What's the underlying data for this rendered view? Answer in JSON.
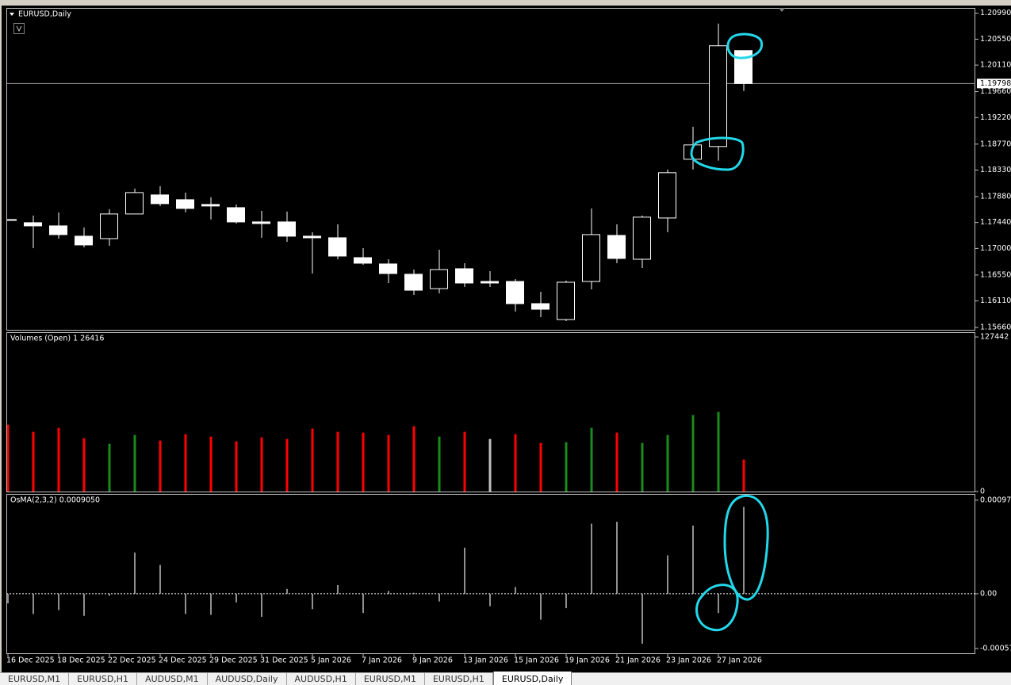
{
  "chart_data": [
    {
      "type": "candlestick",
      "title": "EURUSD,Daily",
      "categories": [
        "16 Dec 2025",
        null,
        "18 Dec 2025",
        null,
        "22 Dec 2025",
        null,
        "24 Dec 2025",
        null,
        "29 Dec 2025",
        null,
        "31 Dec 2025",
        null,
        "5 Jan 2026",
        null,
        "7 Jan 2026",
        null,
        "9 Jan 2026",
        null,
        "13 Jan 2026",
        null,
        "15 Jan 2026",
        null,
        "19 Jan 2026",
        null,
        "21 Jan 2026",
        null,
        "23 Jan 2026",
        null,
        "27 Jan 2026",
        null
      ],
      "open": [
        1.1749,
        1.17437,
        1.17383,
        1.17208,
        1.17167,
        1.17585,
        1.17908,
        1.17827,
        1.17746,
        1.17692,
        1.1745,
        1.1745,
        1.17208,
        1.17181,
        1.16844,
        1.16737,
        1.16562,
        1.16319,
        1.16656,
        1.1644,
        1.1644,
        1.16064,
        1.15794,
        1.1644,
        1.17221,
        1.16817,
        1.17517,
        1.18513,
        1.18729,
        1.20357
      ],
      "high": [
        1.1749,
        1.17558,
        1.17612,
        1.17356,
        1.17666,
        1.18015,
        1.18056,
        1.17948,
        1.17867,
        1.17746,
        1.17638,
        1.17625,
        1.17275,
        1.1741,
        1.17006,
        1.16817,
        1.16642,
        1.16979,
        1.1675,
        1.16615,
        1.16481,
        1.16266,
        1.16454,
        1.17679,
        1.1741,
        1.17558,
        1.18338,
        1.19065,
        1.20815,
        1.20357
      ],
      "low": [
        1.1749,
        1.17006,
        1.17167,
        1.17019,
        1.17046,
        1.17585,
        1.1772,
        1.17612,
        1.17491,
        1.17423,
        1.17181,
        1.17113,
        1.16575,
        1.16817,
        1.16723,
        1.16414,
        1.16212,
        1.16239,
        1.16346,
        1.16346,
        1.15929,
        1.15835,
        1.15768,
        1.16306,
        1.1675,
        1.16669,
        1.17275,
        1.18338,
        1.1849,
        1.19671
      ],
      "close": [
        1.1749,
        1.17383,
        1.17235,
        1.1706,
        1.17585,
        1.17948,
        1.1776,
        1.17679,
        1.1772,
        1.1745,
        1.17423,
        1.17208,
        1.17181,
        1.16871,
        1.1675,
        1.16575,
        1.16292,
        1.16642,
        1.16414,
        1.16414,
        1.16064,
        1.15969,
        1.16427,
        1.17235,
        1.16831,
        1.17531,
        1.18285,
        1.18756,
        1.20438,
        1.19798
      ],
      "bull_color": "#000000",
      "bear_color": "#ffffff",
      "outline_color": "#ffffff",
      "current_price": {
        "value": 1.19798,
        "label": "1.19798"
      },
      "ylim": [
        1.1562,
        1.2108
      ],
      "yticks": [
        {
          "value": 1.2099,
          "label": "1.20990"
        },
        {
          "value": 1.2055,
          "label": "1.20550"
        },
        {
          "value": 1.2011,
          "label": "1.20110"
        },
        {
          "value": 1.1966,
          "label": "1.19660"
        },
        {
          "value": 1.1922,
          "label": "1.19220"
        },
        {
          "value": 1.1877,
          "label": "1.18770"
        },
        {
          "value": 1.1833,
          "label": "1.18330"
        },
        {
          "value": 1.1788,
          "label": "1.17880"
        },
        {
          "value": 1.1744,
          "label": "1.17440"
        },
        {
          "value": 1.17,
          "label": "1.17000"
        },
        {
          "value": 1.1655,
          "label": "1.16550"
        },
        {
          "value": 1.1611,
          "label": "1.16110"
        },
        {
          "value": 1.1566,
          "label": "1.15660"
        }
      ]
    },
    {
      "type": "bar",
      "title": "Volumes (Open) 1 26416",
      "values": [
        55180,
        49270,
        52550,
        44010,
        39410,
        46640,
        42040,
        47300,
        45330,
        41390,
        44670,
        43360,
        51900,
        49270,
        48610,
        46640,
        53870,
        45330,
        49270,
        43360,
        47300,
        40070,
        40730,
        52550,
        48610,
        40070,
        46640,
        63060,
        65690,
        26416
      ],
      "colors": [
        "#ff0000",
        "#ff0000",
        "#ff0000",
        "#ff0000",
        "#1a8c1a",
        "#1a8c1a",
        "#ff0000",
        "#ff0000",
        "#ff0000",
        "#ff0000",
        "#ff0000",
        "#ff0000",
        "#ff0000",
        "#ff0000",
        "#ff0000",
        "#ff0000",
        "#ff0000",
        "#1a8c1a",
        "#ff0000",
        "#c0c0c0",
        "#ff0000",
        "#ff0000",
        "#1a8c1a",
        "#1a8c1a",
        "#ff0000",
        "#1a8c1a",
        "#1a8c1a",
        "#1a8c1a",
        "#1a8c1a",
        "#ff0000"
      ],
      "ylim": [
        0,
        131400
      ],
      "yticks": [
        127442,
        0
      ]
    },
    {
      "type": "bar",
      "title": "OsMA(2,3,2) 0.0009050",
      "values": [
        -0.0001,
        -0.00021,
        -0.00017,
        -0.00023,
        -2e-05,
        0.00043,
        0.0003,
        -0.00021,
        -0.00022,
        -9e-05,
        -0.00024,
        5e-05,
        -0.00016,
        9e-05,
        -0.0002,
        3e-05,
        1e-05,
        -8e-05,
        0.00048,
        -0.00013,
        7e-05,
        -0.00027,
        -0.00015,
        0.00073,
        0.00075,
        -0.00052,
        0.0004,
        0.00071,
        -0.0002,
        0.000905
      ],
      "color": "#c0c0c0",
      "ylim": [
        -0.00062,
        0.00104
      ],
      "yticks": [
        {
          "value": 0.000975,
          "label": "0.000975"
        },
        {
          "value": 0,
          "label": "0.00"
        },
        {
          "value": -0.00057,
          "label": "-0.000570"
        }
      ],
      "zero_line": true
    }
  ],
  "tabs": [
    "EURUSD,M1",
    "EURUSD,H1",
    "AUDUSD,M1",
    "AUDUSD,Daily",
    "AUDUSD,H1",
    "EURUSD,M1",
    "EURUSD,H1",
    "EURUSD,Daily"
  ],
  "active_tab": 7
}
